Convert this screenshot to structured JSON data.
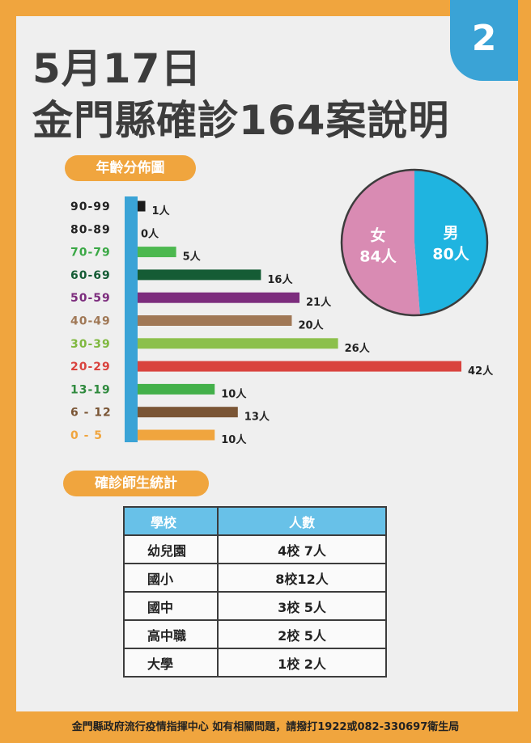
{
  "badge": "2",
  "title_date": "5月17日",
  "title_main": "金門縣確診164案說明",
  "age_section_label": "年齡分佈圖",
  "school_section_label": "確診師生統計",
  "chart_data": [
    {
      "type": "bar",
      "orientation": "horizontal",
      "title": "年齡分佈圖",
      "categories": [
        "90-99",
        "80-89",
        "70-79",
        "60-69",
        "50-59",
        "40-49",
        "30-39",
        "20-29",
        "13-19",
        "6 - 12",
        "0  -  5"
      ],
      "values": [
        1,
        0,
        5,
        16,
        21,
        20,
        26,
        42,
        10,
        13,
        10
      ],
      "value_labels": [
        "1人",
        "0人",
        "5人",
        "16人",
        "21人",
        "20人",
        "26人",
        "42人",
        "10人",
        "13人",
        "10人"
      ],
      "colors": [
        "#1a1a1a",
        "#555555",
        "#4cb84f",
        "#155c35",
        "#7c2c7d",
        "#a07856",
        "#8cc04b",
        "#d9433e",
        "#43b04a",
        "#7a5535",
        "#f0a53e"
      ],
      "label_colors": [
        "#222222",
        "#222222",
        "#3aa845",
        "#155c35",
        "#7c2c7d",
        "#a07856",
        "#7fb83f",
        "#d9433e",
        "#2f8a3e",
        "#7a5535",
        "#f0a53e"
      ],
      "axis_color": "#3aa3d6"
    },
    {
      "type": "pie",
      "slices": [
        {
          "name": "男",
          "value": 80,
          "label": "80人",
          "color": "#1fb4e0"
        },
        {
          "name": "女",
          "value": 84,
          "label": "84人",
          "color": "#d98bb3"
        }
      ]
    }
  ],
  "school_table": {
    "headers": [
      "學校",
      "人數"
    ],
    "rows": [
      {
        "school": "幼兒園",
        "count": "4校  7人"
      },
      {
        "school": "國小",
        "count": "8校12人"
      },
      {
        "school": "國中",
        "count": "3校  5人"
      },
      {
        "school": "高中職",
        "count": "2校  5人"
      },
      {
        "school": "大學",
        "count": "1校    2人"
      }
    ]
  },
  "footer": "金門縣政府流行疫情指揮中心 如有相關問題，請撥打1922或082-330697衛生局"
}
